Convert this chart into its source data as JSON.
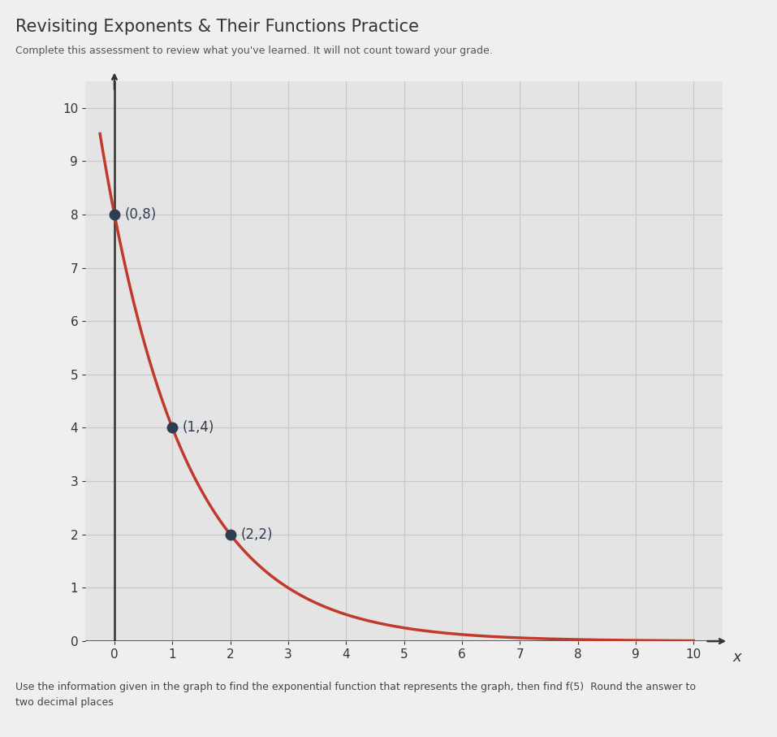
{
  "title": "Revisiting Exponents & Their Functions Practice",
  "subtitle": "Complete this assessment to review what you've learned. It will not count toward your grade.",
  "footer": "Use the information given in the graph to find the exponential function that represents the graph, then find f(5)  Round the answer to\ntwo decimal places",
  "points": [
    [
      0,
      8
    ],
    [
      1,
      4
    ],
    [
      2,
      2
    ]
  ],
  "point_labels": [
    "(0,8)",
    "(1,4)",
    "(2,2)"
  ],
  "curve_color": "#c0392b",
  "point_color": "#2c3e50",
  "xlim": [
    -0.5,
    10.5
  ],
  "ylim": [
    0,
    10.5
  ],
  "xticks": [
    0,
    1,
    2,
    3,
    4,
    5,
    6,
    7,
    8,
    9,
    10
  ],
  "yticks": [
    0,
    1,
    2,
    3,
    4,
    5,
    6,
    7,
    8,
    9,
    10
  ],
  "grid_color": "#c8c8c8",
  "bg_color": "#efefef",
  "plot_bg_color": "#e4e4e4",
  "title_color": "#333333",
  "subtitle_color": "#555555",
  "footer_color": "#444444",
  "blue_line_color": "#3a7fc1",
  "axis_color": "#333333",
  "xlabel": "x"
}
